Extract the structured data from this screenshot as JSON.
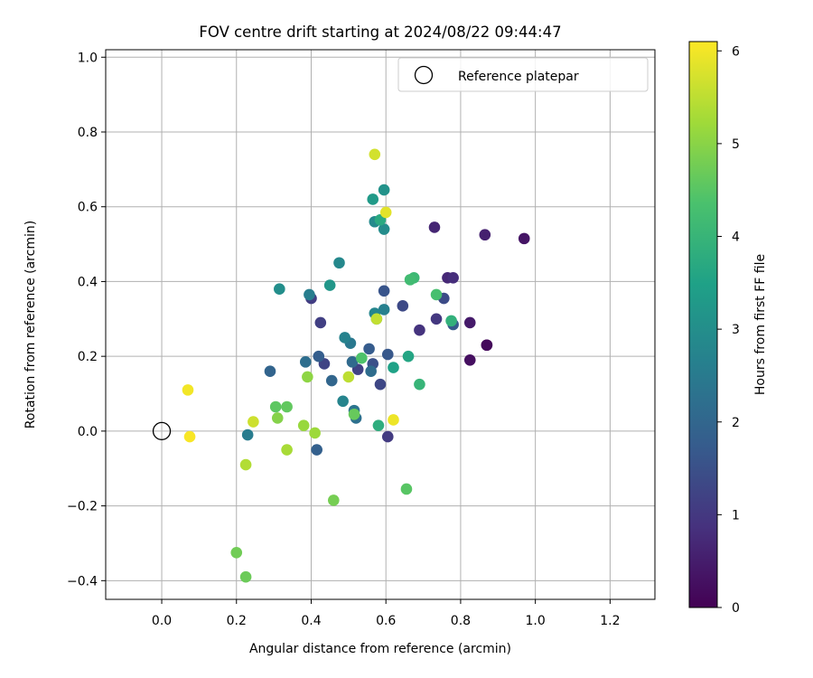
{
  "chart_data": {
    "type": "scatter",
    "title": "FOV centre drift starting at 2024/08/22 09:44:47",
    "xlabel": "Angular distance from reference (arcmin)",
    "ylabel": "Rotation from reference (arcmin)",
    "colorbar_label": "Hours from first FF file",
    "xlim": [
      -0.15,
      1.32
    ],
    "ylim": [
      -0.45,
      1.02
    ],
    "clim": [
      0,
      6.1
    ],
    "xticks": [
      0.0,
      0.2,
      0.4,
      0.6,
      0.8,
      1.0,
      1.2
    ],
    "xtick_labels": [
      "0.0",
      "0.2",
      "0.4",
      "0.6",
      "0.8",
      "1.0",
      "1.2"
    ],
    "yticks": [
      -0.4,
      -0.2,
      0.0,
      0.2,
      0.4,
      0.6,
      0.8,
      1.0
    ],
    "ytick_labels": [
      "−0.4",
      "−0.2",
      "0.0",
      "0.2",
      "0.4",
      "0.6",
      "0.8",
      "1.0"
    ],
    "cticks": [
      0,
      1,
      2,
      3,
      4,
      5,
      6
    ],
    "ctick_labels": [
      "0",
      "1",
      "2",
      "3",
      "4",
      "5",
      "6"
    ],
    "grid": true,
    "legend": {
      "position": "top-right",
      "entries": [
        "Reference platepar"
      ]
    },
    "reference_point": {
      "x": 0.0,
      "y": 0.0
    },
    "colormap": [
      "#440154",
      "#46327e",
      "#365c8d",
      "#277f8e",
      "#1fa187",
      "#4ac16d",
      "#a0da39",
      "#fde725"
    ],
    "points": [
      {
        "x": 0.87,
        "y": 0.23,
        "h": 0.05
      },
      {
        "x": 0.87,
        "y": 0.23,
        "h": 0.15
      },
      {
        "x": 0.825,
        "y": 0.19,
        "h": 0.25
      },
      {
        "x": 0.97,
        "y": 0.515,
        "h": 0.35
      },
      {
        "x": 0.825,
        "y": 0.29,
        "h": 0.45
      },
      {
        "x": 0.865,
        "y": 0.525,
        "h": 0.55
      },
      {
        "x": 0.73,
        "y": 0.545,
        "h": 0.65
      },
      {
        "x": 0.765,
        "y": 0.41,
        "h": 0.7
      },
      {
        "x": 0.78,
        "y": 0.41,
        "h": 0.8
      },
      {
        "x": 0.69,
        "y": 0.27,
        "h": 0.9
      },
      {
        "x": 0.735,
        "y": 0.3,
        "h": 1.0
      },
      {
        "x": 0.605,
        "y": -0.015,
        "h": 1.05
      },
      {
        "x": 0.4,
        "y": 0.355,
        "h": 1.1
      },
      {
        "x": 0.425,
        "y": 0.29,
        "h": 1.15
      },
      {
        "x": 0.525,
        "y": 0.165,
        "h": 1.2
      },
      {
        "x": 0.435,
        "y": 0.18,
        "h": 1.25
      },
      {
        "x": 0.585,
        "y": 0.125,
        "h": 1.3
      },
      {
        "x": 0.645,
        "y": 0.335,
        "h": 1.35
      },
      {
        "x": 0.755,
        "y": 0.355,
        "h": 1.4
      },
      {
        "x": 0.565,
        "y": 0.18,
        "h": 1.5
      },
      {
        "x": 0.595,
        "y": 0.375,
        "h": 1.6
      },
      {
        "x": 0.605,
        "y": 0.205,
        "h": 1.65
      },
      {
        "x": 0.78,
        "y": 0.285,
        "h": 1.7
      },
      {
        "x": 0.555,
        "y": 0.22,
        "h": 1.75
      },
      {
        "x": 0.42,
        "y": 0.2,
        "h": 1.8
      },
      {
        "x": 0.415,
        "y": -0.05,
        "h": 1.85
      },
      {
        "x": 0.29,
        "y": 0.16,
        "h": 1.95
      },
      {
        "x": 0.455,
        "y": 0.135,
        "h": 2.0
      },
      {
        "x": 0.51,
        "y": 0.185,
        "h": 2.1
      },
      {
        "x": 0.56,
        "y": 0.16,
        "h": 2.15
      },
      {
        "x": 0.385,
        "y": 0.185,
        "h": 2.2
      },
      {
        "x": 0.52,
        "y": 0.035,
        "h": 2.25
      },
      {
        "x": 0.515,
        "y": 0.055,
        "h": 2.35
      },
      {
        "x": 0.505,
        "y": 0.235,
        "h": 2.45
      },
      {
        "x": 0.575,
        "y": 0.3,
        "h": 2.5
      },
      {
        "x": 0.23,
        "y": -0.01,
        "h": 2.55
      },
      {
        "x": 0.395,
        "y": 0.365,
        "h": 2.6
      },
      {
        "x": 0.595,
        "y": 0.325,
        "h": 2.65
      },
      {
        "x": 0.49,
        "y": 0.25,
        "h": 2.7
      },
      {
        "x": 0.485,
        "y": 0.08,
        "h": 2.75
      },
      {
        "x": 0.57,
        "y": 0.315,
        "h": 2.8
      },
      {
        "x": 0.475,
        "y": 0.45,
        "h": 2.85
      },
      {
        "x": 0.57,
        "y": 0.56,
        "h": 2.9
      },
      {
        "x": 0.595,
        "y": 0.54,
        "h": 2.95
      },
      {
        "x": 0.315,
        "y": 0.38,
        "h": 3.0
      },
      {
        "x": 0.595,
        "y": 0.645,
        "h": 3.1
      },
      {
        "x": 0.45,
        "y": 0.39,
        "h": 3.2
      },
      {
        "x": 0.565,
        "y": 0.62,
        "h": 3.3
      },
      {
        "x": 0.62,
        "y": 0.17,
        "h": 3.5
      },
      {
        "x": 0.66,
        "y": 0.2,
        "h": 3.6
      },
      {
        "x": 0.585,
        "y": 0.565,
        "h": 3.7
      },
      {
        "x": 0.58,
        "y": 0.015,
        "h": 3.8
      },
      {
        "x": 0.775,
        "y": 0.295,
        "h": 3.9
      },
      {
        "x": 0.69,
        "y": 0.125,
        "h": 4.0
      },
      {
        "x": 0.675,
        "y": 0.41,
        "h": 4.1
      },
      {
        "x": 0.665,
        "y": 0.405,
        "h": 4.2
      },
      {
        "x": 0.735,
        "y": 0.365,
        "h": 4.3
      },
      {
        "x": 0.535,
        "y": 0.195,
        "h": 4.4
      },
      {
        "x": 0.655,
        "y": -0.155,
        "h": 4.5
      },
      {
        "x": 0.305,
        "y": 0.065,
        "h": 4.55
      },
      {
        "x": 0.335,
        "y": 0.065,
        "h": 4.6
      },
      {
        "x": 0.515,
        "y": 0.045,
        "h": 4.65
      },
      {
        "x": 0.225,
        "y": -0.39,
        "h": 4.7
      },
      {
        "x": 0.2,
        "y": -0.325,
        "h": 4.75
      },
      {
        "x": 0.46,
        "y": -0.185,
        "h": 4.8
      },
      {
        "x": 0.31,
        "y": 0.035,
        "h": 4.95
      },
      {
        "x": 0.39,
        "y": 0.145,
        "h": 5.05
      },
      {
        "x": 0.38,
        "y": 0.015,
        "h": 5.15
      },
      {
        "x": 0.41,
        "y": -0.005,
        "h": 5.2
      },
      {
        "x": 0.335,
        "y": -0.05,
        "h": 5.3
      },
      {
        "x": 0.225,
        "y": -0.09,
        "h": 5.4
      },
      {
        "x": 0.5,
        "y": 0.145,
        "h": 5.5
      },
      {
        "x": 0.575,
        "y": 0.3,
        "h": 5.55
      },
      {
        "x": 0.245,
        "y": 0.025,
        "h": 5.65
      },
      {
        "x": 0.57,
        "y": 0.74,
        "h": 5.7
      },
      {
        "x": 0.6,
        "y": 0.585,
        "h": 5.85
      },
      {
        "x": 0.62,
        "y": 0.03,
        "h": 5.95
      },
      {
        "x": 0.07,
        "y": 0.11,
        "h": 6.0
      },
      {
        "x": 0.075,
        "y": -0.015,
        "h": 6.05
      }
    ]
  }
}
